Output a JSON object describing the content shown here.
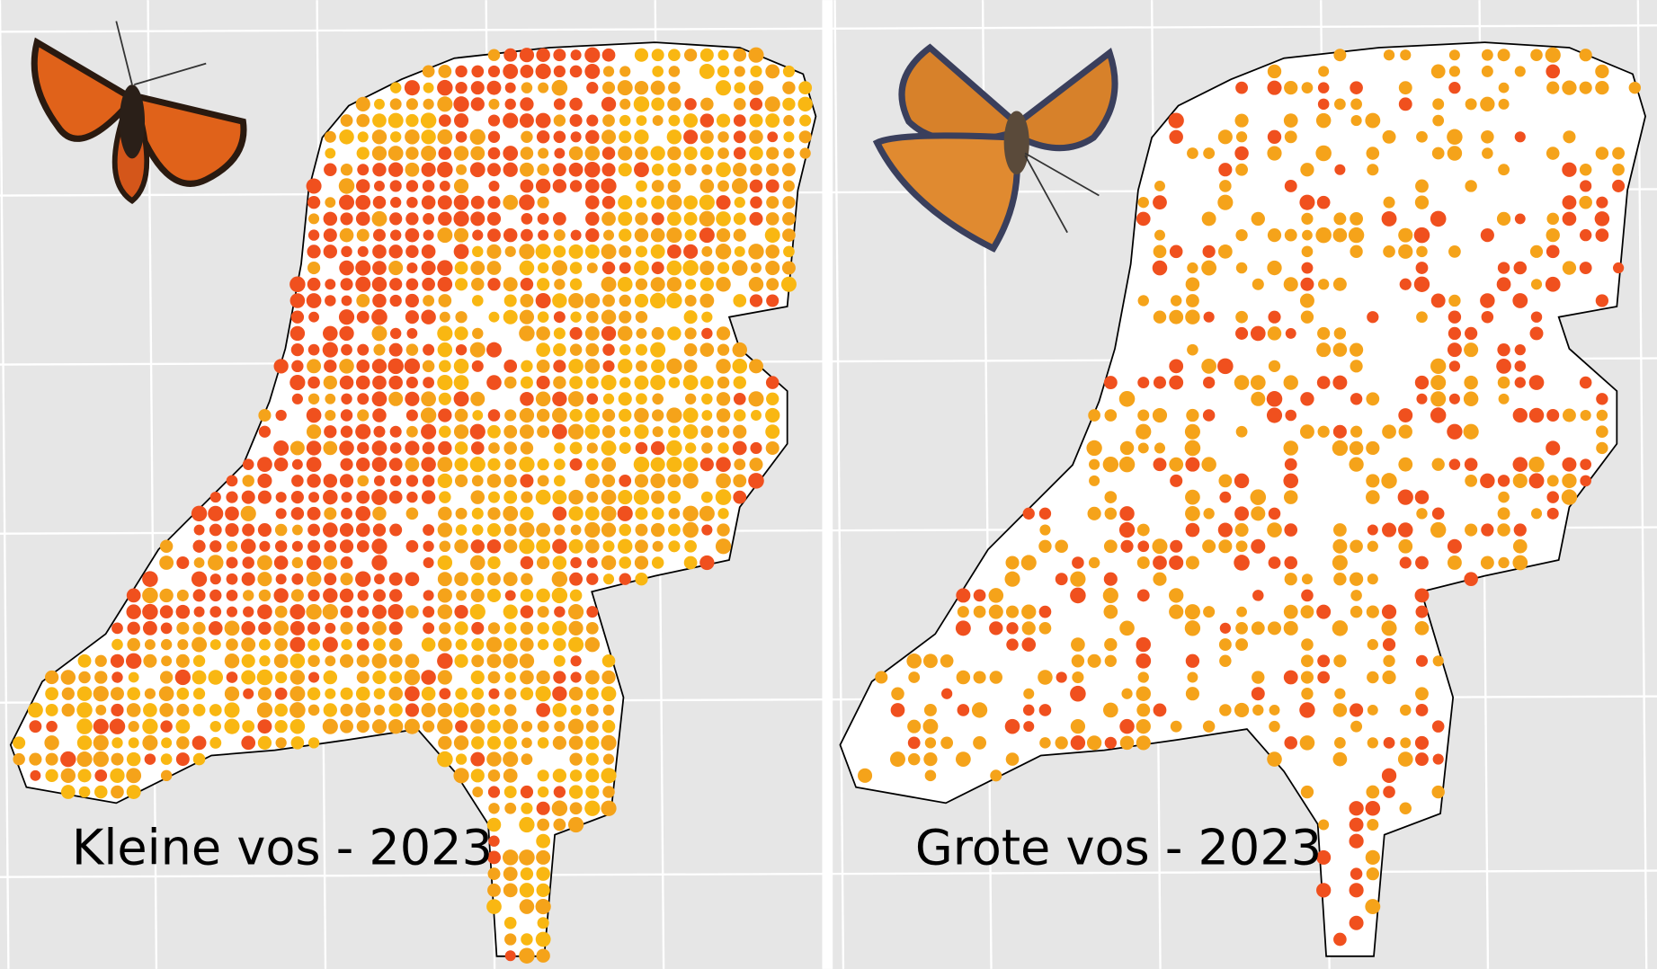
{
  "panels": [
    {
      "title": "Kleine vos - 2023"
    },
    {
      "title": "Grote vos - 2023"
    }
  ]
}
